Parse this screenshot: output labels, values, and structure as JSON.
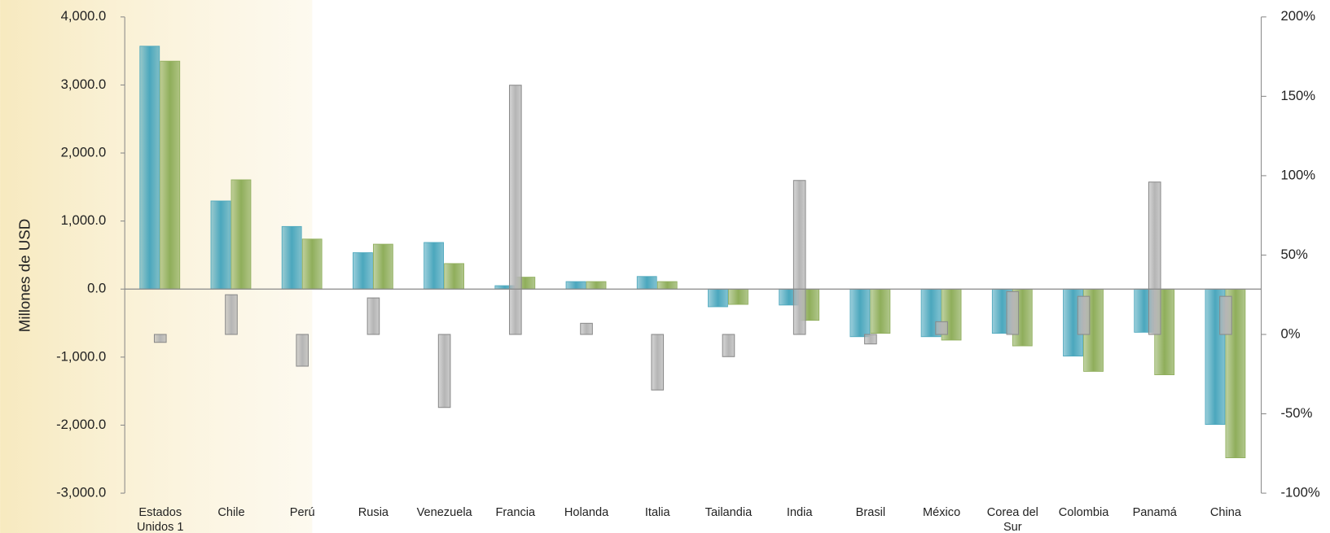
{
  "chart_data": {
    "type": "bar",
    "y_label": "Millones de USD",
    "categories": [
      "Estados Unidos 1",
      "Chile",
      "Perú",
      "Rusia",
      "Venezuela",
      "Francia",
      "Holanda",
      "Italia",
      "Tailandia",
      "India",
      "Brasil",
      "México",
      "Corea del Sur",
      "Colombia",
      "Panamá",
      "China"
    ],
    "series": [
      {
        "color": "#4ba7bd",
        "values": [
          3570,
          1295,
          920,
          535,
          685,
          50,
          110,
          185,
          -260,
          -235,
          -700,
          -700,
          -650,
          -985,
          -635,
          -1990
        ]
      },
      {
        "color": "#8fae5b",
        "values": [
          3350,
          1606,
          735,
          660,
          375,
          175,
          110,
          110,
          -225,
          -460,
          -650,
          -750,
          -835,
          -1210,
          -1260,
          -2480
        ]
      },
      {
        "color": "#b5b5b5",
        "axis": "y2",
        "values": [
          -5,
          25,
          -20,
          23,
          -46,
          157,
          7,
          -35,
          -14,
          97,
          -6,
          8,
          27,
          24,
          96,
          24
        ]
      }
    ],
    "ylim": [
      -3000,
      4000
    ],
    "yticks": [
      {
        "value": -3000,
        "label": "-3,000.0"
      },
      {
        "value": -2000,
        "label": "-2,000.0"
      },
      {
        "value": -1000,
        "label": "-1,000.0"
      },
      {
        "value": 0,
        "label": "0.0"
      },
      {
        "value": 1000,
        "label": "1,000.0"
      },
      {
        "value": 2000,
        "label": "2,000.0"
      },
      {
        "value": 3000,
        "label": "3,000.0"
      },
      {
        "value": 4000,
        "label": "4,000.0"
      }
    ],
    "y2lim": [
      -100,
      200
    ],
    "y2ticks": [
      {
        "value": -100,
        "label": "-100%"
      },
      {
        "value": -50,
        "label": "-50%"
      },
      {
        "value": 0,
        "label": "0%"
      },
      {
        "value": 50,
        "label": "50%"
      },
      {
        "value": 100,
        "label": "100%"
      },
      {
        "value": 150,
        "label": "150%"
      },
      {
        "value": 200,
        "label": "200%"
      }
    ],
    "grid": false
  }
}
